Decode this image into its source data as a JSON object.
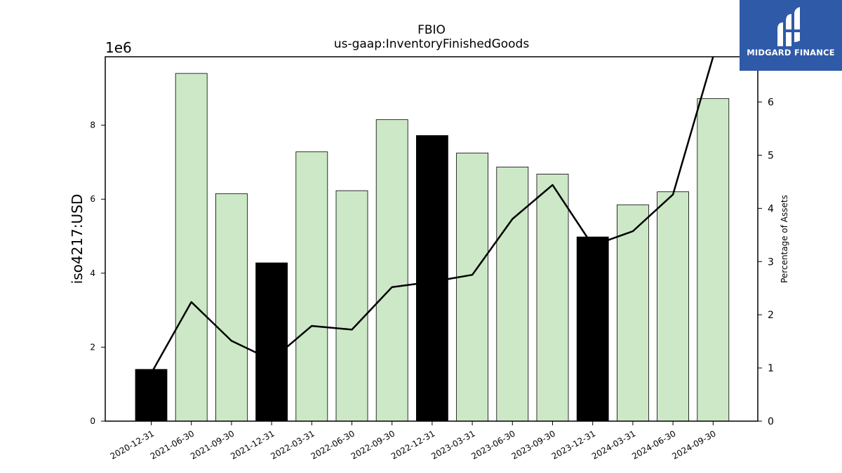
{
  "chart_data": {
    "type": "bar",
    "title": "FBIO",
    "subtitle": "us-gaap:InventoryFinishedGoods",
    "ylabel": "iso4217:USD",
    "ylabel_right": "Percentage of Assets",
    "y_offset_label": "1e6",
    "ylim": [
      0,
      9.85
    ],
    "ylim_right": [
      0,
      6.85
    ],
    "yticks": [
      "0",
      "2",
      "4",
      "6",
      "8"
    ],
    "yticks_right": [
      "0",
      "1",
      "2",
      "3",
      "4",
      "5",
      "6"
    ],
    "grid": false,
    "categories": [
      "2020-12-31",
      "2021-06-30",
      "2021-09-30",
      "2021-12-31",
      "2022-03-31",
      "2022-06-30",
      "2022-09-30",
      "2022-12-31",
      "2023-03-31",
      "2023-06-30",
      "2023-09-30",
      "2023-12-31",
      "2024-03-31",
      "2024-06-30",
      "2024-09-30"
    ],
    "series": [
      {
        "type": "bar",
        "values": [
          1.4,
          9.4,
          6.15,
          4.28,
          7.28,
          6.23,
          8.15,
          7.72,
          7.25,
          6.87,
          6.68,
          4.98,
          5.85,
          6.2,
          8.72
        ],
        "colors": [
          "#000000",
          "#cde8c7",
          "#cde8c7",
          "#000000",
          "#cde8c7",
          "#cde8c7",
          "#cde8c7",
          "#000000",
          "#cde8c7",
          "#cde8c7",
          "#cde8c7",
          "#000000",
          "#cde8c7",
          "#cde8c7",
          "#cde8c7"
        ]
      },
      {
        "type": "line",
        "axis": "right",
        "color": "#000000",
        "values": [
          0.9,
          2.24,
          1.51,
          1.15,
          1.79,
          1.72,
          2.52,
          2.62,
          2.75,
          3.8,
          4.44,
          3.3,
          3.57,
          4.26,
          6.85
        ]
      }
    ]
  },
  "logo": {
    "text": "MIDGARD FINANCE",
    "colors": {
      "background": "#2e5aa8",
      "foreground": "#ffffff"
    }
  }
}
